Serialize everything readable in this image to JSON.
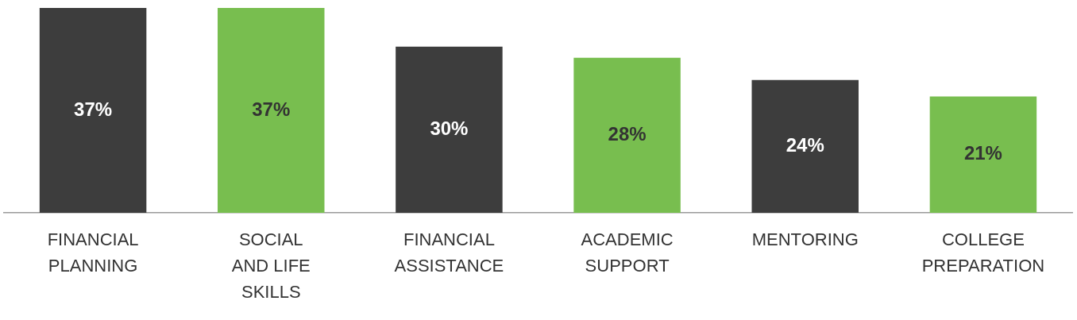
{
  "chart_data": {
    "type": "bar",
    "categories": [
      "FINANCIAL PLANNING",
      "SOCIAL AND LIFE SKILLS",
      "FINANCIAL ASSISTANCE",
      "ACADEMIC SUPPORT",
      "MENTORING",
      "COLLEGE PREPARATION"
    ],
    "values": [
      37,
      37,
      30,
      28,
      24,
      21
    ],
    "colors": [
      "#3d3d3d",
      "#78be4f",
      "#3d3d3d",
      "#78be4f",
      "#3d3d3d",
      "#78be4f"
    ],
    "value_labels": [
      "37%",
      "37%",
      "30%",
      "28%",
      "24%",
      "21%"
    ],
    "ylim": [
      0,
      37
    ],
    "tick_labels": "x",
    "grid": false,
    "legend": false
  }
}
